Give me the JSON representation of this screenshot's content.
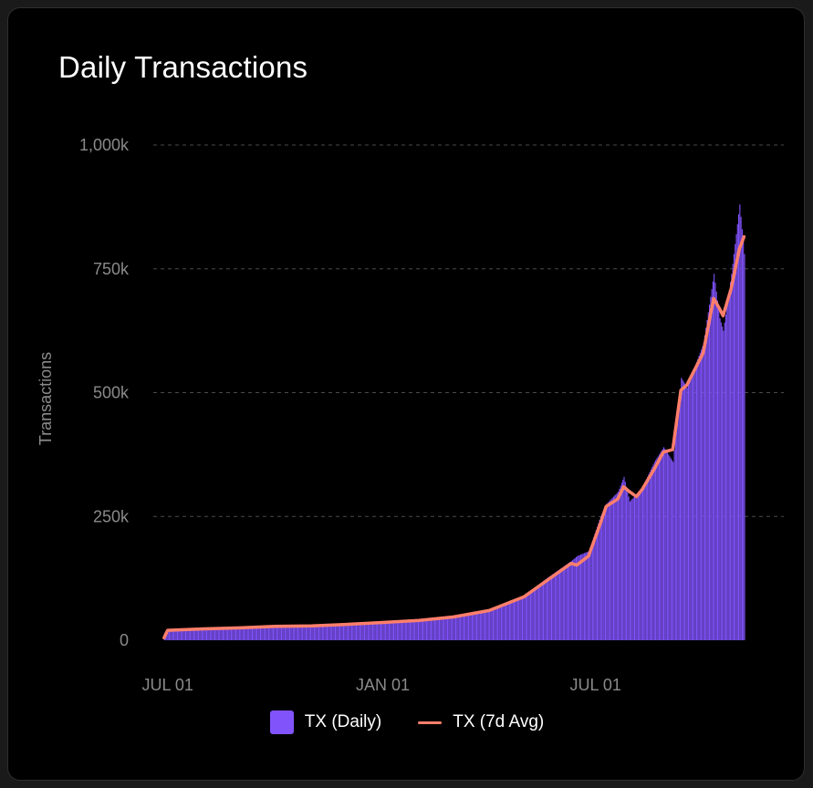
{
  "header": {
    "title": "Daily Transactions"
  },
  "colors": {
    "bar": "#8153fb",
    "line": "#ff7f6b",
    "grid": "#4a4a4a",
    "axis_text": "#8a8a8a"
  },
  "chart_data": {
    "type": "bar",
    "title": "Daily Transactions",
    "ylabel": "Transactions",
    "xlabel": "",
    "ylim": [
      0,
      1000000
    ],
    "yticks": [
      {
        "value": 0,
        "label": "0"
      },
      {
        "value": 250000,
        "label": "250k"
      },
      {
        "value": 500000,
        "label": "500k"
      },
      {
        "value": 750000,
        "label": "750k"
      },
      {
        "value": 1000000,
        "label": "1,000k"
      }
    ],
    "xlim": [
      "2023-06-25",
      "2024-12-09"
    ],
    "xticks": [
      {
        "date": "2023-07-01",
        "label": "JUL 01"
      },
      {
        "date": "2024-01-01",
        "label": "JAN 01"
      },
      {
        "date": "2024-07-01",
        "label": "JUL 01"
      }
    ],
    "grid": true,
    "legend_position": "bottom",
    "series": [
      {
        "name": "TX (Daily)",
        "kind": "bar",
        "points": [
          [
            "2023-06-25",
            0
          ],
          [
            "2023-06-28",
            15000
          ],
          [
            "2023-07-01",
            23000
          ],
          [
            "2023-08-01",
            25000
          ],
          [
            "2023-09-01",
            27000
          ],
          [
            "2023-10-01",
            30000
          ],
          [
            "2023-11-01",
            31000
          ],
          [
            "2023-12-01",
            33000
          ],
          [
            "2024-01-01",
            37000
          ],
          [
            "2024-02-01",
            42000
          ],
          [
            "2024-03-01",
            48000
          ],
          [
            "2024-04-01",
            62000
          ],
          [
            "2024-05-01",
            90000
          ],
          [
            "2024-05-20",
            125000
          ],
          [
            "2024-06-10",
            160000
          ],
          [
            "2024-06-15",
            170000
          ],
          [
            "2024-06-25",
            180000
          ],
          [
            "2024-07-05",
            250000
          ],
          [
            "2024-07-10",
            275000
          ],
          [
            "2024-07-20",
            300000
          ],
          [
            "2024-07-25",
            330000
          ],
          [
            "2024-07-30",
            280000
          ],
          [
            "2024-08-10",
            310000
          ],
          [
            "2024-08-20",
            360000
          ],
          [
            "2024-08-28",
            390000
          ],
          [
            "2024-09-05",
            360000
          ],
          [
            "2024-09-12",
            530000
          ],
          [
            "2024-09-17",
            510000
          ],
          [
            "2024-10-01",
            600000
          ],
          [
            "2024-10-10",
            740000
          ],
          [
            "2024-10-15",
            650000
          ],
          [
            "2024-10-18",
            625000
          ],
          [
            "2024-10-25",
            740000
          ],
          [
            "2024-11-01",
            880000
          ],
          [
            "2024-11-05",
            780000
          ]
        ]
      },
      {
        "name": "TX (7d Avg)",
        "kind": "line",
        "points": [
          [
            "2023-06-28",
            5000
          ],
          [
            "2023-07-01",
            20000
          ],
          [
            "2023-08-01",
            23000
          ],
          [
            "2023-09-01",
            25000
          ],
          [
            "2023-10-01",
            28000
          ],
          [
            "2023-11-01",
            29000
          ],
          [
            "2023-12-01",
            32000
          ],
          [
            "2024-01-01",
            36000
          ],
          [
            "2024-02-01",
            40000
          ],
          [
            "2024-03-01",
            47000
          ],
          [
            "2024-04-01",
            60000
          ],
          [
            "2024-05-01",
            88000
          ],
          [
            "2024-05-20",
            120000
          ],
          [
            "2024-06-10",
            155000
          ],
          [
            "2024-06-15",
            152000
          ],
          [
            "2024-06-25",
            170000
          ],
          [
            "2024-07-05",
            235000
          ],
          [
            "2024-07-10",
            270000
          ],
          [
            "2024-07-20",
            285000
          ],
          [
            "2024-07-25",
            310000
          ],
          [
            "2024-07-30",
            300000
          ],
          [
            "2024-08-05",
            290000
          ],
          [
            "2024-08-10",
            305000
          ],
          [
            "2024-08-20",
            345000
          ],
          [
            "2024-08-28",
            380000
          ],
          [
            "2024-09-05",
            385000
          ],
          [
            "2024-09-12",
            505000
          ],
          [
            "2024-09-17",
            515000
          ],
          [
            "2024-10-01",
            580000
          ],
          [
            "2024-10-10",
            690000
          ],
          [
            "2024-10-15",
            670000
          ],
          [
            "2024-10-18",
            655000
          ],
          [
            "2024-10-25",
            710000
          ],
          [
            "2024-11-01",
            790000
          ],
          [
            "2024-11-05",
            815000
          ]
        ]
      }
    ]
  }
}
